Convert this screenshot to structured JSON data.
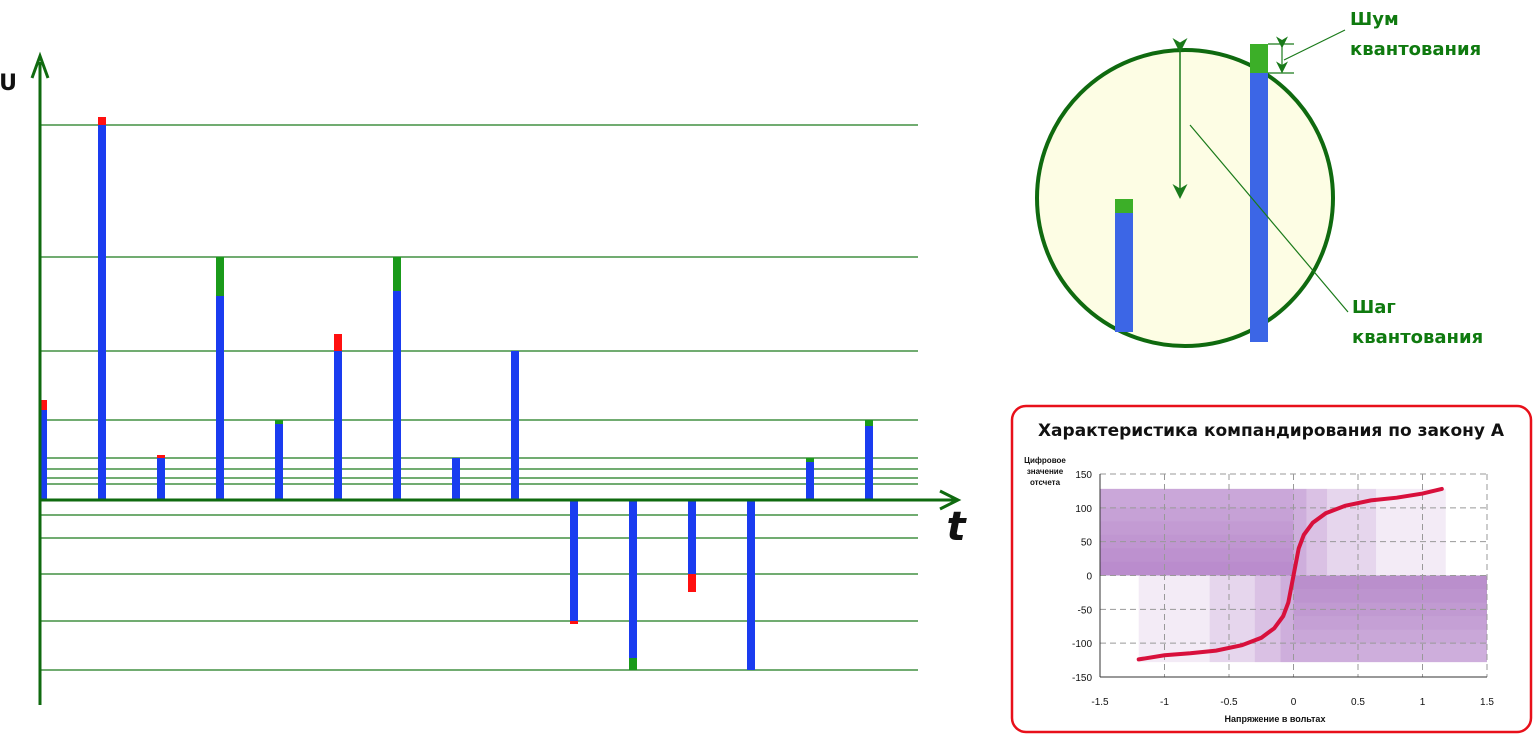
{
  "main_plot": {
    "y_axis_label": "U",
    "x_axis_label": "t",
    "quantization_levels": [
      -170,
      -121,
      -74,
      -38,
      -15,
      16,
      22,
      31,
      42,
      80,
      149,
      243,
      375
    ],
    "samples": [
      {
        "value": 90,
        "error": 10,
        "error_type": "red"
      },
      {
        "value": 375,
        "error": 8,
        "error_type": "red"
      },
      {
        "value": 42,
        "error": 3,
        "error_type": "red"
      },
      {
        "value": 204,
        "error": 39,
        "error_type": "green"
      },
      {
        "value": 76,
        "error": 4,
        "error_type": "green"
      },
      {
        "value": 149,
        "error": 17,
        "error_type": "red"
      },
      {
        "value": 209,
        "error": 34,
        "error_type": "green"
      },
      {
        "value": 42,
        "error": 0,
        "error_type": "none"
      },
      {
        "value": 149,
        "error": 0,
        "error_type": "none"
      },
      {
        "value": -121,
        "error": 3,
        "error_type": "red"
      },
      {
        "value": -158,
        "error": 12,
        "error_type": "green"
      },
      {
        "value": -74,
        "error": 18,
        "error_type": "red"
      },
      {
        "value": -170,
        "error": 0,
        "error_type": "none"
      },
      {
        "value": 38,
        "error": 4,
        "error_type": "green"
      },
      {
        "value": 74,
        "error": 6,
        "error_type": "green"
      }
    ],
    "colors": {
      "axis": "#0f6a0f",
      "level": "#1c7a1c",
      "bar": "#1a3cf0",
      "error_red": "#ff1010",
      "error_green": "#1a9a1a"
    }
  },
  "zoom": {
    "noise_label_line1": "Шум",
    "noise_label_line2": "квантования",
    "step_label_line1": "Шаг",
    "step_label_line2": "квантования",
    "colors": {
      "fill": "#fdfde4",
      "border": "#0f6a0f",
      "bar": "#3c66e6",
      "noise": "#3caf28",
      "text": "#0f7a0f"
    }
  },
  "compander_chart": {
    "title": "Характеристика компандирования по закону А",
    "ylabel_line1": "Цифровое",
    "ylabel_line2": "значение",
    "ylabel_line3": "отсчета",
    "xlabel": "Напряжение в вольтах",
    "x_ticks": [
      "-1.5",
      "-1",
      "-0.5",
      "0",
      "0.5",
      "1",
      "1.5"
    ],
    "y_ticks": [
      "150",
      "100",
      "50",
      "0",
      "-50",
      "-100",
      "-150"
    ],
    "colors": {
      "border": "#e8101a",
      "curve": "#d8103c",
      "shade": "#9b59b6"
    }
  },
  "chart_data": {
    "type": "line",
    "title": "Характеристика компандирования по закону А",
    "xlabel": "Напряжение в вольтах",
    "ylabel": "Цифровое значение отсчета",
    "xlim": [
      -1.5,
      1.5
    ],
    "ylim": [
      -150,
      150
    ],
    "grid": true,
    "series": [
      {
        "x": [
          -1.2,
          -1.0,
          -0.8,
          -0.6,
          -0.4,
          -0.25,
          -0.15,
          -0.08,
          -0.04,
          0.0,
          0.04,
          0.08,
          0.15,
          0.25,
          0.4,
          0.6,
          0.8,
          1.0,
          1.15
        ],
        "y": [
          -124,
          -118,
          -115,
          -111,
          -103,
          -92,
          -78,
          -60,
          -40,
          0,
          40,
          60,
          78,
          92,
          103,
          111,
          115,
          121,
          128
        ]
      }
    ]
  }
}
